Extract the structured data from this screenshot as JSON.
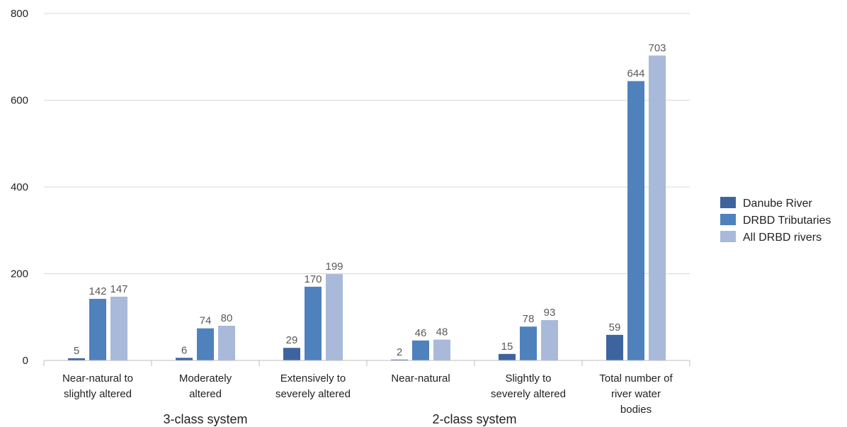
{
  "chart_data": {
    "type": "bar",
    "title": "",
    "xlabel": "",
    "ylabel": "",
    "ylim": [
      0,
      800
    ],
    "yticks": [
      0,
      200,
      400,
      600,
      800
    ],
    "grid": true,
    "legend_position": "right",
    "categories": [
      [
        "Near-natural to",
        "slightly altered"
      ],
      [
        "Moderately",
        "altered"
      ],
      [
        "Extensively to",
        "severely altered"
      ],
      [
        "Near-natural"
      ],
      [
        "Slightly to",
        "severely altered"
      ],
      [
        "Total number of",
        "river water",
        "bodies"
      ]
    ],
    "groups": [
      {
        "label": "3-class system",
        "categories": [
          0,
          1,
          2
        ]
      },
      {
        "label": "2-class system",
        "categories": [
          3,
          4
        ]
      }
    ],
    "series": [
      {
        "name": "Danube River",
        "color": "#3e64a0",
        "values": [
          5,
          6,
          29,
          2,
          15,
          59
        ]
      },
      {
        "name": "DRBD Tributaries",
        "color": "#4f81bd",
        "values": [
          142,
          74,
          170,
          46,
          78,
          644
        ]
      },
      {
        "name": "All DRBD rivers",
        "color": "#a9b9da",
        "values": [
          147,
          80,
          199,
          48,
          93,
          703
        ]
      }
    ]
  }
}
